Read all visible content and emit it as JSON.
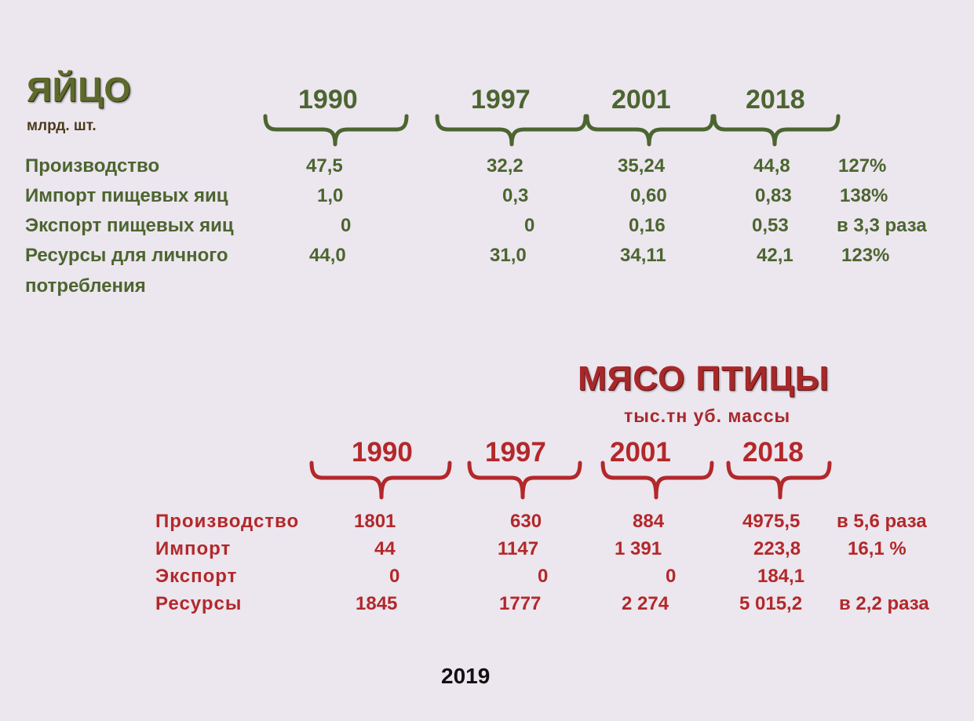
{
  "egg": {
    "title": "ЯЙЦО",
    "unit": "млрд. шт.",
    "years": [
      "1990",
      "1997",
      "2001",
      "2018"
    ],
    "rows": [
      {
        "label": "Производство",
        "values": [
          "47,5",
          "32,2",
          "35,24",
          "44,8"
        ],
        "change": "127%"
      },
      {
        "label": "Импорт пищевых яиц",
        "values": [
          "1,0",
          "0,3",
          "0,60",
          "0,83"
        ],
        "change": "138%"
      },
      {
        "label": "Экспорт пищевых яиц",
        "values": [
          "0",
          "0",
          "0,16",
          "0,53"
        ],
        "change": "в 3,3 раза"
      },
      {
        "label": "Ресурсы для личного",
        "label2": "потребления",
        "values": [
          "44,0",
          "31,0",
          "34,11",
          "42,1"
        ],
        "change": "123%"
      }
    ]
  },
  "poultry": {
    "title": "МЯСО ПТИЦЫ",
    "unit": "тыс.тн  уб. массы",
    "years": [
      "1990",
      "1997",
      "2001",
      "2018"
    ],
    "rows": [
      {
        "label": "Производство",
        "values": [
          "1801",
          "630",
          "884",
          "4975,5"
        ],
        "change": "в 5,6 раза"
      },
      {
        "label": "Импорт",
        "values": [
          "44",
          "1147",
          "1 391",
          "223,8"
        ],
        "change": "16,1 %"
      },
      {
        "label": "Экспорт",
        "values": [
          "0",
          "0",
          "0",
          "184,1"
        ],
        "change": ""
      },
      {
        "label": "Ресурсы",
        "values": [
          "1845",
          "1777",
          "2 274",
          "5 015,2"
        ],
        "change": "в 2,2 раза"
      }
    ]
  },
  "footer": {
    "year": "2019"
  },
  "colors": {
    "egg_green": "#4c6530",
    "meat_red": "#b3282a",
    "background": "#ece6ee"
  }
}
